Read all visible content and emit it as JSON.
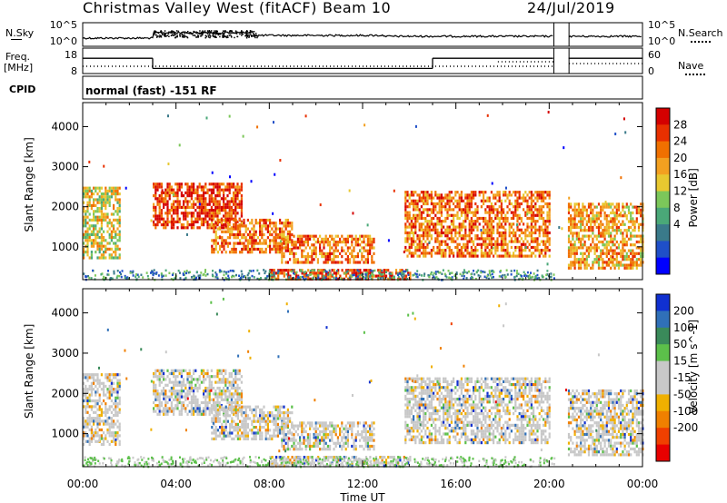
{
  "header": {
    "station": "Christmas Valley West (fitACF)",
    "beam": "Beam 10",
    "date": "24/Jul/2019"
  },
  "left_labels": {
    "nsky": "N.Sky",
    "freq": "Freq.",
    "freq_unit": "[MHz]",
    "cpid": "CPID"
  },
  "right_labels": {
    "nsearch": "N.Search",
    "nave": "Nave"
  },
  "cpid_text": "normal (fast) -151 RF",
  "colors": {
    "power": [
      "#0000ff",
      "#1f4fc8",
      "#3a7a8a",
      "#4aa878",
      "#7cc75a",
      "#e8c830",
      "#f3a020",
      "#f07000",
      "#e83000",
      "#d40000"
    ],
    "velocity": [
      "#e80000",
      "#f04000",
      "#f08000",
      "#f0b000",
      "#c8c8c8",
      "#c8c8c8",
      "#5cc04a",
      "#3a8a5a",
      "#3070b8",
      "#1030d0"
    ]
  },
  "chart_data": [
    {
      "type": "line",
      "name": "noise-panel",
      "ylabel_left": "N.Sky",
      "ylabel_right": "N.Search",
      "left_ticks": [
        "10^5",
        "10^0"
      ],
      "right_ticks": [
        "10^5",
        "10^0"
      ]
    },
    {
      "type": "line",
      "name": "frequency-panel",
      "ylabel_left": "Freq. [MHz]",
      "ylabel_right": "Nave",
      "left_ticks": [
        "18",
        "8"
      ],
      "right_ticks": [
        "60",
        "0"
      ],
      "freq_steps": [
        {
          "from": "00:00",
          "to": "03:00",
          "mhz": 14
        },
        {
          "from": "03:00",
          "to": "15:00",
          "mhz": 10
        },
        {
          "from": "15:00",
          "to": "20:10",
          "mhz": 14
        },
        {
          "from": "20:50",
          "to": "24:00",
          "mhz": 14
        }
      ]
    },
    {
      "type": "heatmap",
      "name": "power-panel",
      "ylabel": "Slant Range [km]",
      "yticks": [
        "4000",
        "3000",
        "2000",
        "1000"
      ],
      "ylim": [
        180,
        4600
      ],
      "colorbar_label": "Power [dB]",
      "colorbar_ticks": [
        "28",
        "24",
        "20",
        "16",
        "12",
        "8",
        "4"
      ],
      "regions": [
        {
          "t0": 0.0,
          "t1": 1.6,
          "r0": 700,
          "r1": 2500,
          "level": 5
        },
        {
          "t0": 3.0,
          "t1": 6.8,
          "r0": 1500,
          "r1": 2600,
          "level": 8
        },
        {
          "t0": 5.5,
          "t1": 9.0,
          "r0": 900,
          "r1": 1700,
          "level": 7
        },
        {
          "t0": 8.5,
          "t1": 12.5,
          "r0": 600,
          "r1": 1300,
          "level": 7
        },
        {
          "t0": 13.8,
          "t1": 20.0,
          "r0": 800,
          "r1": 2400,
          "level": 7
        },
        {
          "t0": 20.8,
          "t1": 24.0,
          "r0": 500,
          "r1": 2100,
          "level": 6
        },
        {
          "t0": 8.0,
          "t1": 14.0,
          "r0": 200,
          "r1": 450,
          "level": 8
        }
      ]
    },
    {
      "type": "heatmap",
      "name": "velocity-panel",
      "ylabel": "Slant Range [km]",
      "yticks": [
        "4000",
        "3000",
        "2000",
        "1000"
      ],
      "ylim": [
        180,
        4600
      ],
      "colorbar_label": "Velocity [m s^-1]",
      "colorbar_ticks": [
        "200",
        "100",
        "50",
        "15",
        "-15",
        "-50",
        "-100",
        "-200"
      ],
      "xticks": [
        "00:00",
        "04:00",
        "08:00",
        "12:00",
        "16:00",
        "20:00",
        "00:00"
      ],
      "xlabel": "Time UT"
    }
  ]
}
